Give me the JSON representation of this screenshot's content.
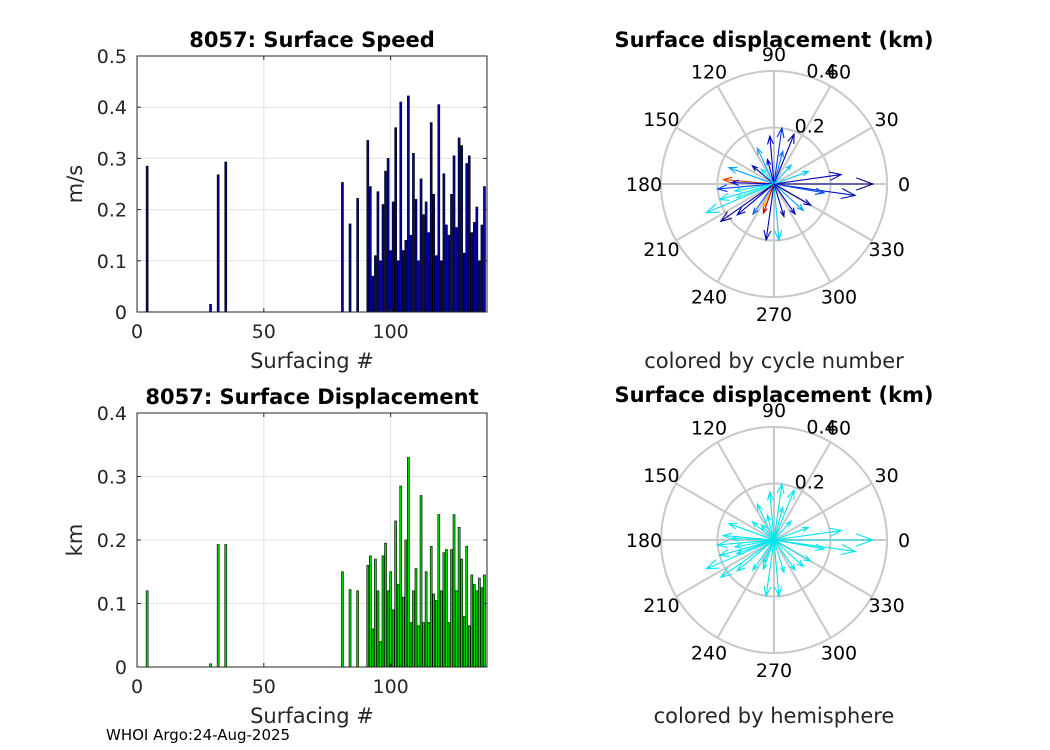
{
  "footer": "WHOI Argo:24-Aug-2025",
  "chart_data": [
    {
      "id": "speed",
      "type": "bar",
      "title": "8057: Surface Speed",
      "xlabel": "Surfacing #",
      "ylabel": "m/s",
      "xlim": [
        0,
        138
      ],
      "ylim": [
        0,
        0.5
      ],
      "xticks": [
        0,
        50,
        100
      ],
      "yticks": [
        0,
        0.1,
        0.2,
        0.3,
        0.4,
        0.5
      ],
      "yticklabels": [
        "0",
        "0.1",
        "0.2",
        "0.3",
        "0.4",
        "0.5"
      ],
      "grid": true,
      "bar_color": "#0000a0",
      "x": [
        4,
        29,
        32,
        35,
        81,
        84,
        87,
        91,
        92,
        93,
        94,
        95,
        96,
        97,
        98,
        99,
        100,
        101,
        102,
        103,
        104,
        105,
        106,
        107,
        108,
        109,
        110,
        111,
        112,
        113,
        114,
        115,
        116,
        117,
        118,
        119,
        120,
        121,
        122,
        123,
        124,
        125,
        126,
        127,
        128,
        129,
        130,
        131,
        132,
        133,
        134,
        135,
        136,
        137
      ],
      "values": [
        0.285,
        0.015,
        0.268,
        0.293,
        0.253,
        0.172,
        0.222,
        0.335,
        0.245,
        0.07,
        0.11,
        0.235,
        0.1,
        0.21,
        0.275,
        0.3,
        0.12,
        0.215,
        0.36,
        0.1,
        0.41,
        0.12,
        0.14,
        0.422,
        0.15,
        0.31,
        0.22,
        0.1,
        0.26,
        0.19,
        0.215,
        0.155,
        0.37,
        0.23,
        0.11,
        0.405,
        0.1,
        0.27,
        0.17,
        0.15,
        0.23,
        0.305,
        0.165,
        0.34,
        0.325,
        0.115,
        0.29,
        0.305,
        0.155,
        0.175,
        0.205,
        0.1,
        0.17,
        0.245
      ]
    },
    {
      "id": "displacement",
      "type": "bar",
      "title": "8057: Surface Displacement",
      "xlabel": "Surfacing #",
      "ylabel": "km",
      "xlim": [
        0,
        138
      ],
      "ylim": [
        0,
        0.4
      ],
      "xticks": [
        0,
        50,
        100
      ],
      "yticks": [
        0,
        0.1,
        0.2,
        0.3,
        0.4
      ],
      "yticklabels": [
        "0",
        "0.1",
        "0.2",
        "0.3",
        "0.4"
      ],
      "grid": true,
      "bar_color": "#00dd00",
      "x": [
        4,
        29,
        32,
        35,
        81,
        84,
        87,
        91,
        92,
        93,
        94,
        95,
        96,
        97,
        98,
        99,
        100,
        101,
        102,
        103,
        104,
        105,
        106,
        107,
        108,
        109,
        110,
        111,
        112,
        113,
        114,
        115,
        116,
        117,
        118,
        119,
        120,
        121,
        122,
        123,
        124,
        125,
        126,
        127,
        128,
        129,
        130,
        131,
        132,
        133,
        134,
        135,
        136,
        137
      ],
      "values": [
        0.12,
        0.005,
        0.193,
        0.193,
        0.15,
        0.122,
        0.12,
        0.16,
        0.175,
        0.06,
        0.17,
        0.12,
        0.04,
        0.175,
        0.195,
        0.12,
        0.15,
        0.09,
        0.23,
        0.13,
        0.285,
        0.11,
        0.2,
        0.33,
        0.07,
        0.12,
        0.155,
        0.065,
        0.27,
        0.07,
        0.15,
        0.07,
        0.19,
        0.115,
        0.105,
        0.24,
        0.12,
        0.18,
        0.185,
        0.07,
        0.185,
        0.24,
        0.12,
        0.22,
        0.17,
        0.08,
        0.19,
        0.065,
        0.145,
        0.13,
        0.12,
        0.14,
        0.125,
        0.145
      ]
    },
    {
      "id": "polar-cycle",
      "type": "compass",
      "title": "Surface displacement (km)",
      "subtitle": "colored by cycle number",
      "rmax": 0.4,
      "rtick_labels": [
        "0.2",
        "0.4"
      ],
      "angle_labels": [
        "0",
        "30",
        "60",
        "90",
        "120",
        "150",
        "180",
        "210",
        "240",
        "270",
        "300",
        "330"
      ],
      "vectors": [
        {
          "angle": 0,
          "length": 0.35,
          "color": "#000080"
        },
        {
          "angle": 8,
          "length": 0.24,
          "color": "#0000aa"
        },
        {
          "angle": -8,
          "length": 0.29,
          "color": "#0010c0"
        },
        {
          "angle": 350,
          "length": 0.18,
          "color": "#0050ff"
        },
        {
          "angle": 20,
          "length": 0.13,
          "color": "#00c8ff"
        },
        {
          "angle": 68,
          "length": 0.19,
          "color": "#0000aa"
        },
        {
          "angle": 82,
          "length": 0.2,
          "color": "#0030ff"
        },
        {
          "angle": 95,
          "length": 0.17,
          "color": "#0000cc"
        },
        {
          "angle": 75,
          "length": 0.12,
          "color": "#0070ff"
        },
        {
          "angle": 115,
          "length": 0.14,
          "color": "#00b0ff"
        },
        {
          "angle": 140,
          "length": 0.1,
          "color": "#0000a0"
        },
        {
          "angle": 160,
          "length": 0.17,
          "color": "#00a8ff"
        },
        {
          "angle": 175,
          "length": 0.18,
          "color": "#e04000"
        },
        {
          "angle": 178,
          "length": 0.15,
          "color": "#0000cc"
        },
        {
          "angle": 185,
          "length": 0.2,
          "color": "#0040ff"
        },
        {
          "angle": 190,
          "length": 0.14,
          "color": "#00e8ff"
        },
        {
          "angle": 196,
          "length": 0.2,
          "color": "#00e0ff"
        },
        {
          "angle": 203,
          "length": 0.26,
          "color": "#00d8ff"
        },
        {
          "angle": 200,
          "length": 0.14,
          "color": "#30ffd0"
        },
        {
          "angle": 215,
          "length": 0.23,
          "color": "#000090"
        },
        {
          "angle": 220,
          "length": 0.17,
          "color": "#0000c0"
        },
        {
          "angle": 235,
          "length": 0.13,
          "color": "#0060ff"
        },
        {
          "angle": 245,
          "length": 0.09,
          "color": "#ffaa00"
        },
        {
          "angle": 250,
          "length": 0.11,
          "color": "#c00000"
        },
        {
          "angle": 262,
          "length": 0.2,
          "color": "#0000b0"
        },
        {
          "angle": 275,
          "length": 0.2,
          "color": "#00d0ff"
        },
        {
          "angle": 287,
          "length": 0.12,
          "color": "#0000a0"
        },
        {
          "angle": 305,
          "length": 0.13,
          "color": "#0000c0"
        },
        {
          "angle": 318,
          "length": 0.14,
          "color": "#00a0ff"
        },
        {
          "angle": 330,
          "length": 0.15,
          "color": "#0000aa"
        },
        {
          "angle": 48,
          "length": 0.09,
          "color": "#00c0ff"
        },
        {
          "angle": 130,
          "length": 0.07,
          "color": "#00f0ff"
        },
        {
          "angle": 105,
          "length": 0.09,
          "color": "#0000d0"
        }
      ]
    },
    {
      "id": "polar-hemisphere",
      "type": "compass",
      "title": "Surface displacement (km)",
      "subtitle": "colored by hemisphere",
      "rmax": 0.4,
      "rtick_labels": [
        "0.2",
        "0.4"
      ],
      "angle_labels": [
        "0",
        "30",
        "60",
        "90",
        "120",
        "150",
        "180",
        "210",
        "240",
        "270",
        "300",
        "330"
      ],
      "vector_color": "#00e5ee",
      "vectors": [
        {
          "angle": 0,
          "length": 0.35
        },
        {
          "angle": 8,
          "length": 0.24
        },
        {
          "angle": -8,
          "length": 0.29
        },
        {
          "angle": 350,
          "length": 0.18
        },
        {
          "angle": 20,
          "length": 0.13
        },
        {
          "angle": 68,
          "length": 0.19
        },
        {
          "angle": 82,
          "length": 0.2
        },
        {
          "angle": 95,
          "length": 0.17
        },
        {
          "angle": 75,
          "length": 0.12
        },
        {
          "angle": 115,
          "length": 0.14
        },
        {
          "angle": 140,
          "length": 0.1
        },
        {
          "angle": 160,
          "length": 0.17
        },
        {
          "angle": 175,
          "length": 0.18
        },
        {
          "angle": 178,
          "length": 0.15
        },
        {
          "angle": 185,
          "length": 0.2
        },
        {
          "angle": 190,
          "length": 0.14
        },
        {
          "angle": 196,
          "length": 0.2
        },
        {
          "angle": 203,
          "length": 0.26
        },
        {
          "angle": 200,
          "length": 0.14
        },
        {
          "angle": 215,
          "length": 0.23
        },
        {
          "angle": 220,
          "length": 0.17
        },
        {
          "angle": 235,
          "length": 0.13
        },
        {
          "angle": 245,
          "length": 0.09
        },
        {
          "angle": 250,
          "length": 0.11
        },
        {
          "angle": 262,
          "length": 0.2
        },
        {
          "angle": 275,
          "length": 0.2
        },
        {
          "angle": 287,
          "length": 0.12
        },
        {
          "angle": 305,
          "length": 0.13
        },
        {
          "angle": 318,
          "length": 0.14
        },
        {
          "angle": 330,
          "length": 0.15
        },
        {
          "angle": 48,
          "length": 0.09
        },
        {
          "angle": 130,
          "length": 0.07
        },
        {
          "angle": 105,
          "length": 0.09
        }
      ]
    }
  ]
}
